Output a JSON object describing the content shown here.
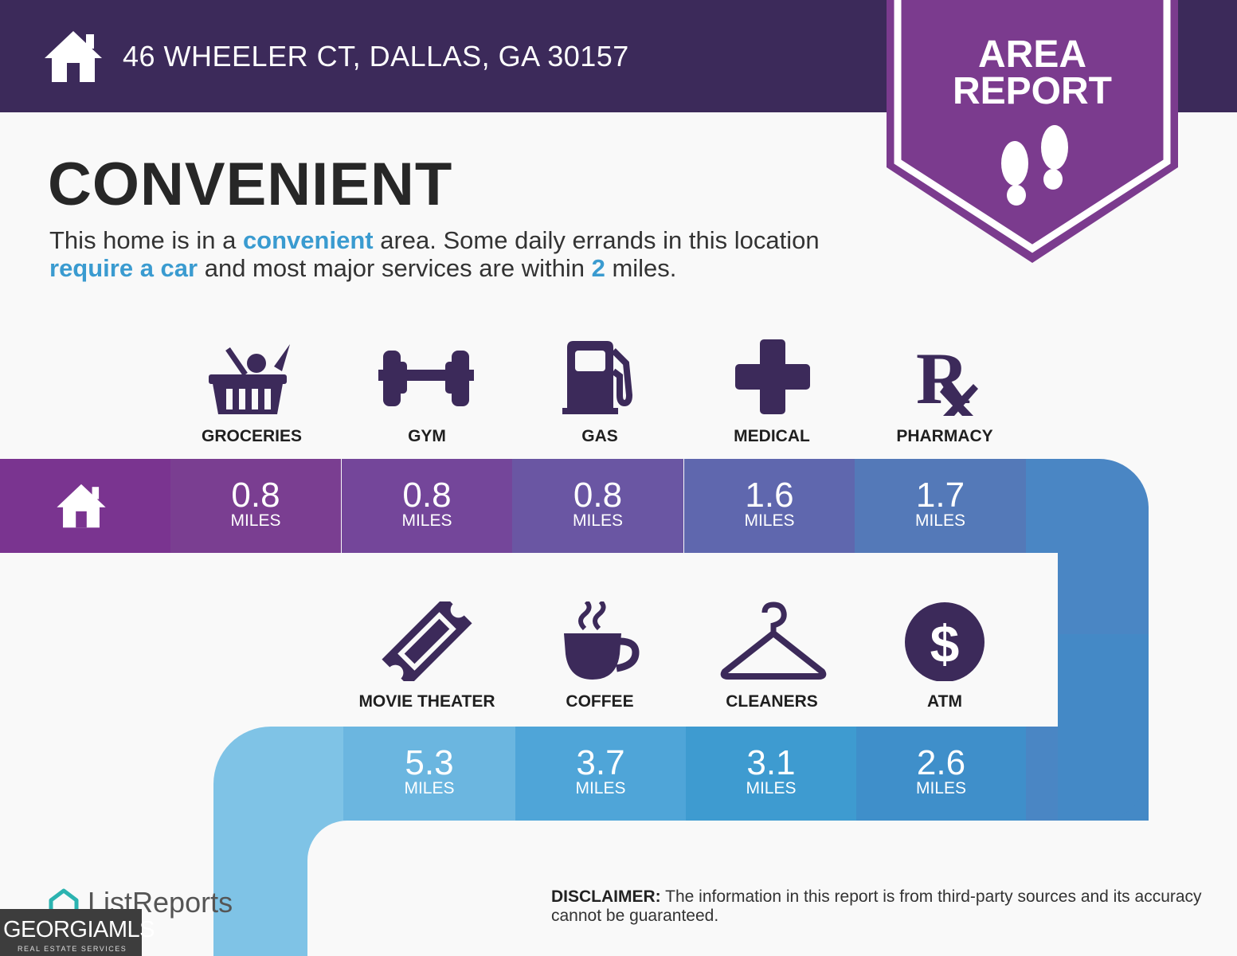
{
  "header": {
    "address": "46 WHEELER CT, DALLAS, GA 30157",
    "home_icon": "home-icon",
    "color": "#3c2a5a"
  },
  "badge": {
    "line1": "AREA",
    "line2": "REPORT",
    "icon": "footprints-icon",
    "color": "#7b3b8e"
  },
  "summary": {
    "title": "CONVENIENT",
    "lead": [
      {
        "text": "This home is in a ",
        "highlight": false
      },
      {
        "text": "convenient",
        "highlight": true
      },
      {
        "text": " area. Some daily errands in this location ",
        "highlight": false
      },
      {
        "text": "require a car",
        "highlight": true
      },
      {
        "text": " and most major services are within ",
        "highlight": false
      },
      {
        "text": "2",
        "highlight": true
      },
      {
        "text": " miles.",
        "highlight": false
      }
    ],
    "highlight_color": "#3a9bd0"
  },
  "row1": [
    {
      "label": "GROCERIES",
      "miles": "0.8",
      "unit": "MILES",
      "icon": "grocery-basket-icon",
      "color": "#7a3e91"
    },
    {
      "label": "GYM",
      "miles": "0.8",
      "unit": "MILES",
      "icon": "dumbbell-icon",
      "color": "#74469a"
    },
    {
      "label": "GAS",
      "miles": "0.8",
      "unit": "MILES",
      "icon": "gas-pump-icon",
      "color": "#6a56a3"
    },
    {
      "label": "MEDICAL",
      "miles": "1.6",
      "unit": "MILES",
      "icon": "medical-cross-icon",
      "color": "#5f67ae"
    },
    {
      "label": "PHARMACY",
      "miles": "1.7",
      "unit": "MILES",
      "icon": "rx-icon",
      "color": "#5479b8"
    }
  ],
  "row2": [
    {
      "label": "MOVIE THEATER",
      "miles": "5.3",
      "unit": "MILES",
      "icon": "movie-ticket-icon",
      "color": "#6bb6e0"
    },
    {
      "label": "COFFEE",
      "miles": "3.7",
      "unit": "MILES",
      "icon": "coffee-cup-icon",
      "color": "#4fa5d8"
    },
    {
      "label": "CLEANERS",
      "miles": "3.1",
      "unit": "MILES",
      "icon": "hanger-icon",
      "color": "#3e9bd0"
    },
    {
      "label": "ATM",
      "miles": "2.6",
      "unit": "MILES",
      "icon": "dollar-icon",
      "color": "#3f8fca"
    }
  ],
  "footer": {
    "brand": "ListReports",
    "mls_big": "GEORGIAMLS",
    "mls_small": "REAL ESTATE SERVICES",
    "disclaimer_label": "DISCLAIMER:",
    "disclaimer_text": " The information in this report is from third-party sources and its accuracy cannot be guaranteed."
  }
}
